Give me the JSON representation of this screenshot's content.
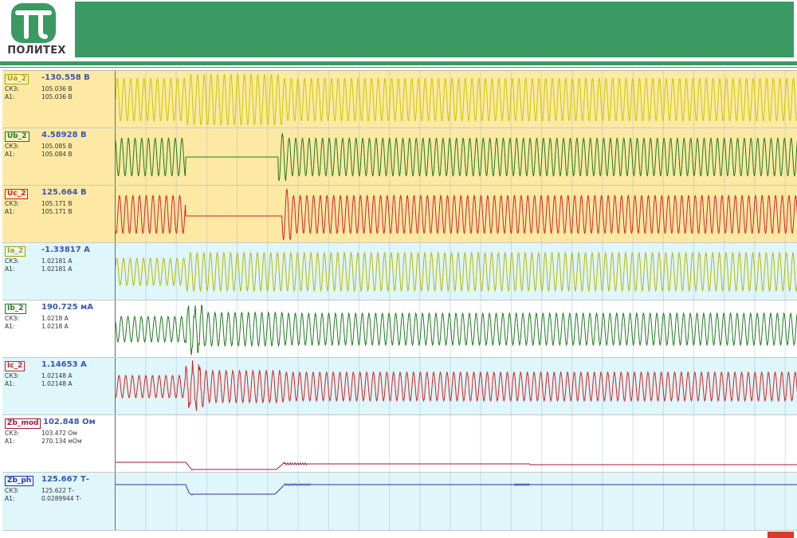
{
  "brand": {
    "name": "ПОЛИТЕХ",
    "logo_icon": "pi-logo-icon",
    "banner_color": "#3b9a62"
  },
  "channels": [
    {
      "id": "Ua_2",
      "label": "Ua_2",
      "value": "-130.558 В",
      "row1_label": "СКЗ:",
      "row1_value": "105.036 В",
      "row2_label": "A1:",
      "row2_value": "105.036 В",
      "color": "#c8c800",
      "badge_color": "#a8a800",
      "bg": "#fde9a4"
    },
    {
      "id": "Ub_2",
      "label": "Ub_2",
      "value": "4.58928 В",
      "row1_label": "СКЗ:",
      "row1_value": "105.085 В",
      "row2_label": "A1:",
      "row2_value": "105.084 В",
      "color": "#1f7a1f",
      "badge_color": "#1f7a1f",
      "bg": "#fde9a4"
    },
    {
      "id": "Uc_2",
      "label": "Uc_2",
      "value": "125.664 В",
      "row1_label": "СКЗ:",
      "row1_value": "105.171 В",
      "row2_label": "A1:",
      "row2_value": "105.171 В",
      "color": "#d42020",
      "badge_color": "#d42020",
      "bg": "#fde9a4"
    },
    {
      "id": "Ia_2",
      "label": "Ia_2",
      "value": "-1.33817 А",
      "row1_label": "СКЗ:",
      "row1_value": "1.02181  А",
      "row2_label": "A1:",
      "row2_value": "1.02181  А",
      "color": "#b8b800",
      "badge_color": "#a0a000",
      "bg": "#dff6fb"
    },
    {
      "id": "Ib_2",
      "label": "Ib_2",
      "value": "190.725 мА",
      "row1_label": "СКЗ:",
      "row1_value": "1.0218  А",
      "row2_label": "A1:",
      "row2_value": "1.0218  А",
      "color": "#1f7a1f",
      "badge_color": "#1f7a1f",
      "bg": "#ffffff"
    },
    {
      "id": "Ic_2",
      "label": "Ic_2",
      "value": "1.14653 А",
      "row1_label": "СКЗ:",
      "row1_value": "1.02148  А",
      "row2_label": "A1:",
      "row2_value": "1.02148  А",
      "color": "#d42020",
      "badge_color": "#d42020",
      "bg": "#dff6fb"
    },
    {
      "id": "Zb_mod",
      "label": "Zb_mod",
      "value": "102.848 Ом",
      "row1_label": "СКЗ:",
      "row1_value": "103.472  Ом",
      "row2_label": "A1:",
      "row2_value": "270.134 мОм",
      "color": "#a01838",
      "badge_color": "#a01838",
      "bg": "#ffffff"
    },
    {
      "id": "Zb_ph",
      "label": "Zb_ph",
      "value": "125.667 Т-",
      "row1_label": "СКЗ:",
      "row1_value": "125.622  Т-",
      "row2_label": "A1:",
      "row2_value": "0.0289944 Т-",
      "color": "#3030a0",
      "badge_color": "#3030a0",
      "bg": "#dff6fb"
    }
  ]
}
